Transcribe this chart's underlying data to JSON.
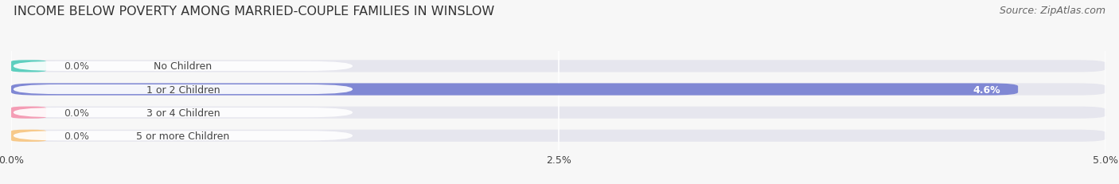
{
  "title": "INCOME BELOW POVERTY AMONG MARRIED-COUPLE FAMILIES IN WINSLOW",
  "source_text": "Source: ZipAtlas.com",
  "categories": [
    "No Children",
    "1 or 2 Children",
    "3 or 4 Children",
    "5 or more Children"
  ],
  "values": [
    0.0,
    4.6,
    0.0,
    0.0
  ],
  "bar_colors": [
    "#5ecfbf",
    "#8088d4",
    "#f49db5",
    "#f7c98a"
  ],
  "bar_bg_color": "#e6e6ee",
  "xlim": [
    0,
    5.0
  ],
  "xticks": [
    0.0,
    2.5,
    5.0
  ],
  "xtick_labels": [
    "0.0%",
    "2.5%",
    "5.0%"
  ],
  "background_color": "#f7f7f7",
  "title_fontsize": 11.5,
  "label_fontsize": 9,
  "value_fontsize": 9,
  "source_fontsize": 9,
  "bar_height": 0.52,
  "label_text_color": "#444444",
  "source_text_color": "#666666",
  "title_color": "#333333",
  "pill_color": "#ffffff",
  "grid_color": "#ffffff",
  "value_label_color_inside": "#ffffff",
  "value_label_color_outside": "#555555"
}
